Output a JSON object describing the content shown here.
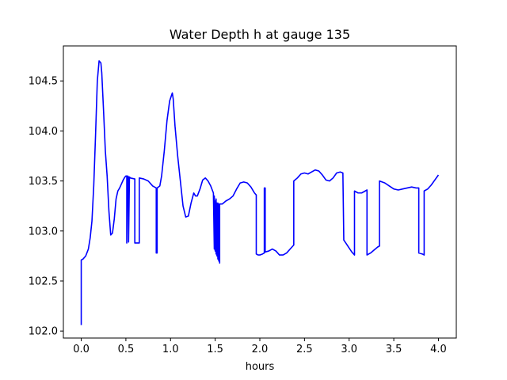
{
  "chart_data": {
    "type": "line",
    "title": "Water Depth h at gauge 135",
    "xlabel": "hours",
    "ylabel": "",
    "xlim": [
      -0.2,
      4.2
    ],
    "ylim": [
      101.93,
      104.85
    ],
    "xticks": [
      0.0,
      0.5,
      1.0,
      1.5,
      2.0,
      2.5,
      3.0,
      3.5,
      4.0
    ],
    "xtick_labels": [
      "0.0",
      "0.5",
      "1.0",
      "1.5",
      "2.0",
      "2.5",
      "3.0",
      "3.5",
      "4.0"
    ],
    "yticks": [
      102.0,
      102.5,
      103.0,
      103.5,
      104.0,
      104.5
    ],
    "ytick_labels": [
      "102.0",
      "102.5",
      "103.0",
      "103.5",
      "104.0",
      "104.5"
    ],
    "grid": false,
    "legend": "none",
    "series": [
      {
        "color": "#0000ff",
        "x": [
          0.0,
          0.0,
          0.02,
          0.05,
          0.08,
          0.1,
          0.12,
          0.14,
          0.16,
          0.18,
          0.2,
          0.22,
          0.23,
          0.25,
          0.27,
          0.29,
          0.31,
          0.33,
          0.35,
          0.37,
          0.39,
          0.41,
          0.43,
          0.45,
          0.47,
          0.49,
          0.5,
          0.51,
          0.51,
          0.52,
          0.53,
          0.53,
          0.54,
          0.55,
          0.6,
          0.6,
          0.62,
          0.64,
          0.65,
          0.65,
          0.7,
          0.75,
          0.8,
          0.84,
          0.84,
          0.85,
          0.85,
          0.88,
          0.9,
          0.93,
          0.96,
          0.99,
          1.02,
          1.03,
          1.05,
          1.08,
          1.11,
          1.14,
          1.17,
          1.2,
          1.23,
          1.26,
          1.28,
          1.3,
          1.33,
          1.36,
          1.39,
          1.42,
          1.45,
          1.48,
          1.49,
          1.49,
          1.5,
          1.5,
          1.51,
          1.51,
          1.52,
          1.52,
          1.53,
          1.53,
          1.54,
          1.54,
          1.55,
          1.55,
          1.58,
          1.62,
          1.66,
          1.7,
          1.74,
          1.78,
          1.82,
          1.86,
          1.9,
          1.94,
          1.96,
          1.96,
          1.98,
          2.0,
          2.03,
          2.05,
          2.05,
          2.06,
          2.06,
          2.1,
          2.14,
          2.18,
          2.22,
          2.26,
          2.3,
          2.34,
          2.38,
          2.38,
          2.42,
          2.46,
          2.5,
          2.54,
          2.58,
          2.62,
          2.66,
          2.7,
          2.74,
          2.78,
          2.82,
          2.86,
          2.9,
          2.93,
          2.94,
          2.94,
          2.97,
          3.0,
          3.03,
          3.06,
          3.06,
          3.1,
          3.14,
          3.18,
          3.2,
          3.2,
          3.24,
          3.28,
          3.32,
          3.34,
          3.34,
          3.4,
          3.45,
          3.5,
          3.55,
          3.6,
          3.65,
          3.7,
          3.75,
          3.78,
          3.78,
          3.82,
          3.84,
          3.84,
          3.88,
          3.92,
          3.96,
          4.0
        ],
        "y": [
          102.06,
          102.71,
          102.72,
          102.75,
          102.82,
          102.93,
          103.1,
          103.45,
          103.95,
          104.5,
          104.7,
          104.68,
          104.58,
          104.2,
          103.8,
          103.55,
          103.2,
          102.96,
          102.98,
          103.12,
          103.32,
          103.4,
          103.43,
          103.47,
          103.51,
          103.54,
          103.55,
          103.55,
          102.88,
          103.55,
          103.54,
          102.89,
          103.54,
          103.53,
          103.52,
          102.88,
          102.88,
          102.88,
          102.88,
          103.53,
          103.52,
          103.5,
          103.45,
          103.43,
          102.78,
          102.78,
          103.43,
          103.45,
          103.55,
          103.8,
          104.1,
          104.3,
          104.38,
          104.32,
          104.05,
          103.75,
          103.5,
          103.25,
          103.14,
          103.15,
          103.28,
          103.38,
          103.35,
          103.35,
          103.42,
          103.51,
          103.53,
          103.5,
          103.45,
          103.38,
          102.82,
          103.35,
          102.8,
          103.3,
          102.77,
          103.32,
          102.75,
          103.28,
          102.72,
          103.28,
          102.7,
          103.27,
          102.68,
          103.27,
          103.27,
          103.3,
          103.32,
          103.35,
          103.42,
          103.48,
          103.49,
          103.48,
          103.44,
          103.38,
          103.36,
          102.77,
          102.76,
          102.76,
          102.77,
          102.78,
          103.43,
          103.43,
          102.79,
          102.8,
          102.82,
          102.8,
          102.76,
          102.76,
          102.78,
          102.82,
          102.86,
          103.5,
          103.53,
          103.57,
          103.58,
          103.57,
          103.59,
          103.61,
          103.6,
          103.56,
          103.51,
          103.5,
          103.53,
          103.58,
          103.59,
          103.58,
          102.92,
          102.91,
          102.87,
          102.83,
          102.79,
          102.76,
          103.4,
          103.38,
          103.38,
          103.4,
          103.41,
          102.76,
          102.78,
          102.81,
          102.84,
          102.85,
          103.5,
          103.48,
          103.45,
          103.42,
          103.41,
          103.42,
          103.43,
          103.44,
          103.43,
          103.43,
          102.78,
          102.77,
          102.76,
          103.4,
          103.42,
          103.46,
          103.51,
          103.56
        ]
      }
    ]
  }
}
